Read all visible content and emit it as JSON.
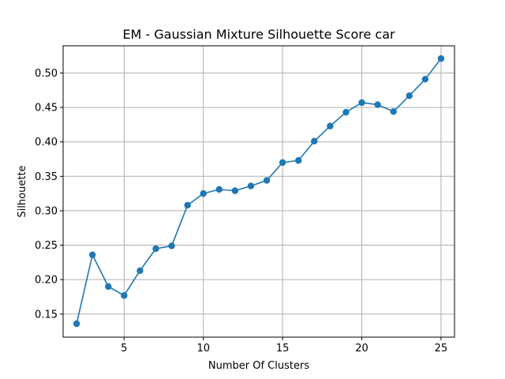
{
  "chart_data": {
    "type": "line",
    "title": "EM - Gaussian Mixture Silhouette Score car",
    "xlabel": "Number Of Clusters",
    "ylabel": "Silhouette",
    "xlim": [
      1.15,
      25.85
    ],
    "ylim": [
      0.1165,
      0.5395
    ],
    "xticks": [
      5,
      10,
      15,
      20,
      25
    ],
    "xtick_labels": [
      "5",
      "10",
      "15",
      "20",
      "25"
    ],
    "yticks": [
      0.15,
      0.2,
      0.25,
      0.3,
      0.35,
      0.4,
      0.45,
      0.5
    ],
    "ytick_labels": [
      "0.15",
      "0.20",
      "0.25",
      "0.30",
      "0.35",
      "0.40",
      "0.45",
      "0.50"
    ],
    "grid": true,
    "series": [
      {
        "color": "#1f77b4",
        "marker": "circle",
        "x": [
          2,
          3,
          4,
          5,
          6,
          7,
          8,
          9,
          10,
          11,
          12,
          13,
          14,
          15,
          16,
          17,
          18,
          19,
          20,
          21,
          22,
          23,
          24,
          25
        ],
        "y": [
          0.136,
          0.236,
          0.19,
          0.177,
          0.213,
          0.245,
          0.249,
          0.308,
          0.325,
          0.331,
          0.329,
          0.336,
          0.344,
          0.37,
          0.373,
          0.401,
          0.423,
          0.443,
          0.457,
          0.454,
          0.444,
          0.467,
          0.491,
          0.521
        ]
      }
    ]
  }
}
